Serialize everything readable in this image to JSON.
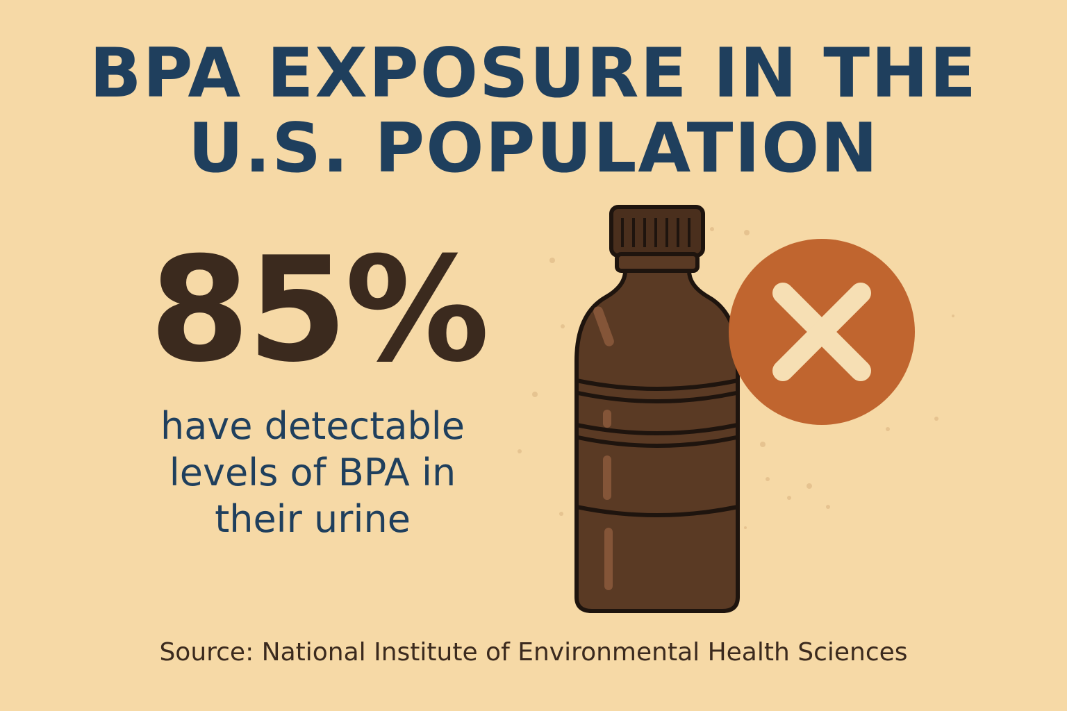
{
  "title": {
    "line1": "BPA EXPOSURE IN THE",
    "line2": "U.S. POPULATION"
  },
  "stat": {
    "value": "85%",
    "description_line1": "have detectable",
    "description_line2": "levels of BPA in",
    "description_line3": "their urine"
  },
  "source": "Source: National Institute of Environmental Health Sciences",
  "icons": {
    "bottle": "plastic-bottle-icon",
    "prohibited": "x-circle-icon"
  },
  "colors": {
    "background": "#f6d9a6",
    "title": "#1f3f5d",
    "stat_value": "#3b2a1e",
    "bottle": "#5a3a24",
    "x_circle": "#c0652f",
    "x_mark": "#f6dfb4"
  }
}
